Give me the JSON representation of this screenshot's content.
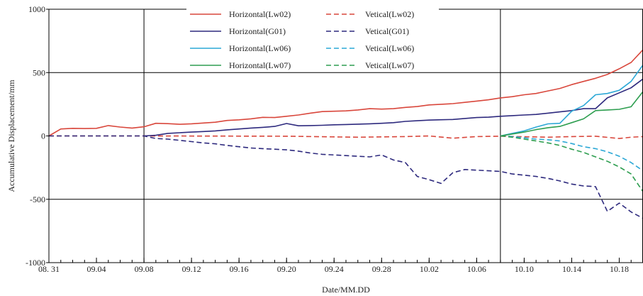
{
  "chart_data": {
    "type": "line",
    "title": "",
    "xlabel": "Date/MM.DD",
    "ylabel": "Accumulative Displacement/mm",
    "ylim": [
      -1000,
      1000
    ],
    "yticks": [
      "1000",
      "500",
      "0",
      "-500",
      "-1000"
    ],
    "xlim": [
      "08.31",
      "10.20"
    ],
    "xticks": [
      {
        "date": "08.31",
        "label": "08. 31"
      },
      {
        "date": "09.04",
        "label": "09.04"
      },
      {
        "date": "09.08",
        "label": "09.08"
      },
      {
        "date": "09.12",
        "label": "09.12"
      },
      {
        "date": "09.16",
        "label": "09.16"
      },
      {
        "date": "09.20",
        "label": "09.20"
      },
      {
        "date": "09.24",
        "label": "09.24"
      },
      {
        "date": "09.28",
        "label": "09.28"
      },
      {
        "date": "10.02",
        "label": "10.02"
      },
      {
        "date": "10.06",
        "label": "10.06"
      },
      {
        "date": "10.10",
        "label": "10.10"
      },
      {
        "date": "10.14",
        "label": "10.14"
      },
      {
        "date": "10.18",
        "label": "10.18"
      }
    ],
    "vlines": [
      "09.08",
      "10.08"
    ],
    "hlines": [
      500,
      -500
    ],
    "legend_position": "top",
    "series": [
      {
        "name": "Horizontal(Lw02)",
        "color": "#d9473c",
        "dash": "solid",
        "points": [
          [
            "08.31",
            0
          ],
          [
            "09.01",
            55
          ],
          [
            "09.02",
            60
          ],
          [
            "09.03",
            58
          ],
          [
            "09.04",
            60
          ],
          [
            "09.05",
            82
          ],
          [
            "09.06",
            70
          ],
          [
            "09.07",
            62
          ],
          [
            "09.08",
            72
          ],
          [
            "09.09",
            100
          ],
          [
            "09.10",
            97
          ],
          [
            "09.11",
            92
          ],
          [
            "09.12",
            96
          ],
          [
            "09.13",
            102
          ],
          [
            "09.14",
            108
          ],
          [
            "09.15",
            122
          ],
          [
            "09.16",
            127
          ],
          [
            "09.17",
            135
          ],
          [
            "09.18",
            147
          ],
          [
            "09.19",
            145
          ],
          [
            "09.20",
            155
          ],
          [
            "09.21",
            165
          ],
          [
            "09.22",
            180
          ],
          [
            "09.23",
            192
          ],
          [
            "09.24",
            195
          ],
          [
            "09.25",
            198
          ],
          [
            "09.26",
            205
          ],
          [
            "09.27",
            215
          ],
          [
            "09.28",
            212
          ],
          [
            "09.29",
            215
          ],
          [
            "09.30",
            225
          ],
          [
            "10.01",
            232
          ],
          [
            "10.02",
            245
          ],
          [
            "10.03",
            250
          ],
          [
            "10.04",
            255
          ],
          [
            "10.05",
            265
          ],
          [
            "10.06",
            275
          ],
          [
            "10.07",
            285
          ],
          [
            "10.08",
            300
          ],
          [
            "10.09",
            310
          ],
          [
            "10.10",
            325
          ],
          [
            "10.11",
            335
          ],
          [
            "10.12",
            355
          ],
          [
            "10.13",
            375
          ],
          [
            "10.14",
            405
          ],
          [
            "10.15",
            430
          ],
          [
            "10.16",
            455
          ],
          [
            "10.17",
            485
          ],
          [
            "10.18",
            530
          ],
          [
            "10.19",
            580
          ],
          [
            "10.20",
            680
          ]
        ]
      },
      {
        "name": "Vetical(Lw02)",
        "color": "#d9473c",
        "dash": "dashed",
        "points": [
          [
            "08.31",
            0
          ],
          [
            "09.08",
            0
          ],
          [
            "09.20",
            -2
          ],
          [
            "09.26",
            -10
          ],
          [
            "09.30",
            -5
          ],
          [
            "10.02",
            0
          ],
          [
            "10.04",
            -18
          ],
          [
            "10.06",
            -5
          ],
          [
            "10.08",
            -2
          ],
          [
            "10.12",
            -10
          ],
          [
            "10.14",
            -5
          ],
          [
            "10.16",
            -2
          ],
          [
            "10.18",
            -20
          ],
          [
            "10.19",
            -10
          ],
          [
            "10.20",
            -5
          ]
        ]
      },
      {
        "name": "Horizontal(G01)",
        "color": "#2e2a7e",
        "dash": "solid",
        "points": [
          [
            "09.08",
            0
          ],
          [
            "09.09",
            5
          ],
          [
            "09.10",
            20
          ],
          [
            "09.11",
            25
          ],
          [
            "09.12",
            30
          ],
          [
            "09.13",
            35
          ],
          [
            "09.14",
            40
          ],
          [
            "09.15",
            48
          ],
          [
            "09.16",
            55
          ],
          [
            "09.17",
            62
          ],
          [
            "09.18",
            68
          ],
          [
            "09.19",
            75
          ],
          [
            "09.20",
            98
          ],
          [
            "09.21",
            80
          ],
          [
            "09.22",
            82
          ],
          [
            "09.23",
            84
          ],
          [
            "09.24",
            88
          ],
          [
            "09.25",
            90
          ],
          [
            "09.26",
            93
          ],
          [
            "09.27",
            96
          ],
          [
            "09.28",
            100
          ],
          [
            "09.29",
            105
          ],
          [
            "09.30",
            115
          ],
          [
            "10.01",
            120
          ],
          [
            "10.02",
            125
          ],
          [
            "10.03",
            128
          ],
          [
            "10.04",
            130
          ],
          [
            "10.05",
            138
          ],
          [
            "10.06",
            145
          ],
          [
            "10.07",
            148
          ],
          [
            "10.08",
            155
          ],
          [
            "10.09",
            160
          ],
          [
            "10.10",
            165
          ],
          [
            "10.11",
            170
          ],
          [
            "10.12",
            180
          ],
          [
            "10.13",
            190
          ],
          [
            "10.14",
            200
          ],
          [
            "10.15",
            215
          ],
          [
            "10.16",
            215
          ],
          [
            "10.17",
            300
          ],
          [
            "10.18",
            340
          ],
          [
            "10.19",
            380
          ],
          [
            "10.20",
            450
          ]
        ]
      },
      {
        "name": "Vetical(G01)",
        "color": "#2e2a7e",
        "dash": "dashed",
        "points": [
          [
            "08.31",
            0
          ],
          [
            "09.08",
            0
          ],
          [
            "09.09",
            -20
          ],
          [
            "09.10",
            -25
          ],
          [
            "09.11",
            -35
          ],
          [
            "09.12",
            -45
          ],
          [
            "09.13",
            -55
          ],
          [
            "09.14",
            -62
          ],
          [
            "09.15",
            -75
          ],
          [
            "09.16",
            -85
          ],
          [
            "09.17",
            -95
          ],
          [
            "09.18",
            -100
          ],
          [
            "09.19",
            -105
          ],
          [
            "09.20",
            -110
          ],
          [
            "09.21",
            -120
          ],
          [
            "09.22",
            -135
          ],
          [
            "09.23",
            -145
          ],
          [
            "09.24",
            -150
          ],
          [
            "09.25",
            -155
          ],
          [
            "09.26",
            -160
          ],
          [
            "09.27",
            -165
          ],
          [
            "09.28",
            -150
          ],
          [
            "09.29",
            -190
          ],
          [
            "09.30",
            -210
          ],
          [
            "10.01",
            -320
          ],
          [
            "10.02",
            -345
          ],
          [
            "10.03",
            -375
          ],
          [
            "10.04",
            -290
          ],
          [
            "10.05",
            -265
          ],
          [
            "10.06",
            -270
          ],
          [
            "10.07",
            -275
          ],
          [
            "10.08",
            -280
          ],
          [
            "10.09",
            -300
          ],
          [
            "10.10",
            -310
          ],
          [
            "10.11",
            -320
          ],
          [
            "10.12",
            -335
          ],
          [
            "10.13",
            -355
          ],
          [
            "10.14",
            -380
          ],
          [
            "10.15",
            -395
          ],
          [
            "10.16",
            -400
          ],
          [
            "10.17",
            -595
          ],
          [
            "10.18",
            -530
          ],
          [
            "10.19",
            -600
          ],
          [
            "10.20",
            -650
          ]
        ]
      },
      {
        "name": "Horizontal(Lw06)",
        "color": "#2ca8d6",
        "dash": "solid",
        "points": [
          [
            "10.08",
            0
          ],
          [
            "10.09",
            20
          ],
          [
            "10.10",
            40
          ],
          [
            "10.11",
            70
          ],
          [
            "10.12",
            95
          ],
          [
            "10.13",
            100
          ],
          [
            "10.14",
            195
          ],
          [
            "10.15",
            240
          ],
          [
            "10.16",
            325
          ],
          [
            "10.17",
            335
          ],
          [
            "10.18",
            360
          ],
          [
            "10.19",
            430
          ],
          [
            "10.20",
            560
          ]
        ]
      },
      {
        "name": "Vetical(Lw06)",
        "color": "#2ca8d6",
        "dash": "dashed",
        "points": [
          [
            "10.08",
            0
          ],
          [
            "10.09",
            -5
          ],
          [
            "10.10",
            -15
          ],
          [
            "10.11",
            -25
          ],
          [
            "10.12",
            -30
          ],
          [
            "10.13",
            -40
          ],
          [
            "10.14",
            -60
          ],
          [
            "10.15",
            -85
          ],
          [
            "10.16",
            -100
          ],
          [
            "10.17",
            -125
          ],
          [
            "10.18",
            -160
          ],
          [
            "10.19",
            -210
          ],
          [
            "10.20",
            -275
          ]
        ]
      },
      {
        "name": "Horizontal(Lw07)",
        "color": "#2e9e50",
        "dash": "solid",
        "points": [
          [
            "10.08",
            0
          ],
          [
            "10.09",
            15
          ],
          [
            "10.10",
            30
          ],
          [
            "10.11",
            50
          ],
          [
            "10.12",
            65
          ],
          [
            "10.13",
            75
          ],
          [
            "10.14",
            105
          ],
          [
            "10.15",
            135
          ],
          [
            "10.16",
            200
          ],
          [
            "10.17",
            205
          ],
          [
            "10.18",
            210
          ],
          [
            "10.19",
            230
          ],
          [
            "10.20",
            350
          ]
        ]
      },
      {
        "name": "Vetical(Lw07)",
        "color": "#2e9e50",
        "dash": "dashed",
        "points": [
          [
            "10.08",
            0
          ],
          [
            "10.09",
            -10
          ],
          [
            "10.10",
            -25
          ],
          [
            "10.11",
            -40
          ],
          [
            "10.12",
            -55
          ],
          [
            "10.13",
            -75
          ],
          [
            "10.14",
            -105
          ],
          [
            "10.15",
            -130
          ],
          [
            "10.16",
            -165
          ],
          [
            "10.17",
            -200
          ],
          [
            "10.18",
            -245
          ],
          [
            "10.19",
            -300
          ],
          [
            "10.20",
            -440
          ]
        ]
      }
    ]
  }
}
